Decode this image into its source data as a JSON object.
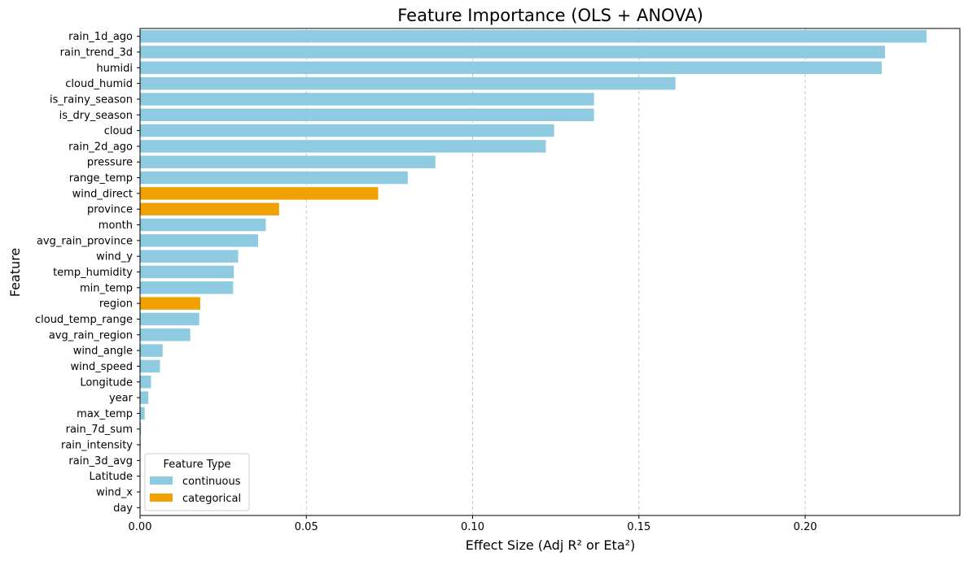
{
  "chart_data": {
    "type": "bar",
    "orientation": "horizontal",
    "title": "Feature Importance (OLS + ANOVA)",
    "xlabel": "Effect Size (Adj R² or Eta²)",
    "ylabel": "Feature",
    "xlim": [
      0,
      0.2465
    ],
    "xticks": [
      0.0,
      0.05,
      0.1,
      0.15,
      0.2
    ],
    "xtick_labels": [
      "0.00",
      "0.05",
      "0.10",
      "0.15",
      "0.20"
    ],
    "grid": "x-dashed",
    "legend": {
      "title": "Feature Type",
      "placement": "bottom-left",
      "entries": [
        {
          "label": "continuous",
          "color": "#8ecae0"
        },
        {
          "label": "categorical",
          "color": "#f0a000"
        }
      ]
    },
    "colors": {
      "continuous": "#8ecae0",
      "categorical": "#f0a000"
    },
    "bars": [
      {
        "feature": "rain_1d_ago",
        "value": 0.2365,
        "type": "continuous"
      },
      {
        "feature": "rain_trend_3d",
        "value": 0.224,
        "type": "continuous"
      },
      {
        "feature": "humidi",
        "value": 0.223,
        "type": "continuous"
      },
      {
        "feature": "cloud_humid",
        "value": 0.161,
        "type": "continuous"
      },
      {
        "feature": "is_rainy_season",
        "value": 0.1365,
        "type": "continuous"
      },
      {
        "feature": "is_dry_season",
        "value": 0.1365,
        "type": "continuous"
      },
      {
        "feature": "cloud",
        "value": 0.1245,
        "type": "continuous"
      },
      {
        "feature": "rain_2d_ago",
        "value": 0.122,
        "type": "continuous"
      },
      {
        "feature": "pressure",
        "value": 0.0888,
        "type": "continuous"
      },
      {
        "feature": "range_temp",
        "value": 0.0805,
        "type": "continuous"
      },
      {
        "feature": "wind_direct",
        "value": 0.0716,
        "type": "categorical"
      },
      {
        "feature": "province",
        "value": 0.0418,
        "type": "categorical"
      },
      {
        "feature": "month",
        "value": 0.0378,
        "type": "continuous"
      },
      {
        "feature": "avg_rain_province",
        "value": 0.0355,
        "type": "continuous"
      },
      {
        "feature": "wind_y",
        "value": 0.0295,
        "type": "continuous"
      },
      {
        "feature": "temp_humidity",
        "value": 0.0282,
        "type": "continuous"
      },
      {
        "feature": "min_temp",
        "value": 0.028,
        "type": "continuous"
      },
      {
        "feature": "region",
        "value": 0.0181,
        "type": "categorical"
      },
      {
        "feature": "cloud_temp_range",
        "value": 0.0178,
        "type": "continuous"
      },
      {
        "feature": "avg_rain_region",
        "value": 0.0151,
        "type": "continuous"
      },
      {
        "feature": "wind_angle",
        "value": 0.0068,
        "type": "continuous"
      },
      {
        "feature": "wind_speed",
        "value": 0.006,
        "type": "continuous"
      },
      {
        "feature": "Longitude",
        "value": 0.0033,
        "type": "continuous"
      },
      {
        "feature": "year",
        "value": 0.0025,
        "type": "continuous"
      },
      {
        "feature": "max_temp",
        "value": 0.0014,
        "type": "continuous"
      },
      {
        "feature": "rain_7d_sum",
        "value": 0.0003,
        "type": "continuous"
      },
      {
        "feature": "rain_intensity",
        "value": 0.0002,
        "type": "continuous"
      },
      {
        "feature": "rain_3d_avg",
        "value": 0.0001,
        "type": "continuous"
      },
      {
        "feature": "Latitude",
        "value": 0.0001,
        "type": "continuous"
      },
      {
        "feature": "wind_x",
        "value": 0.0,
        "type": "continuous"
      },
      {
        "feature": "day",
        "value": 0.0,
        "type": "continuous"
      }
    ]
  }
}
